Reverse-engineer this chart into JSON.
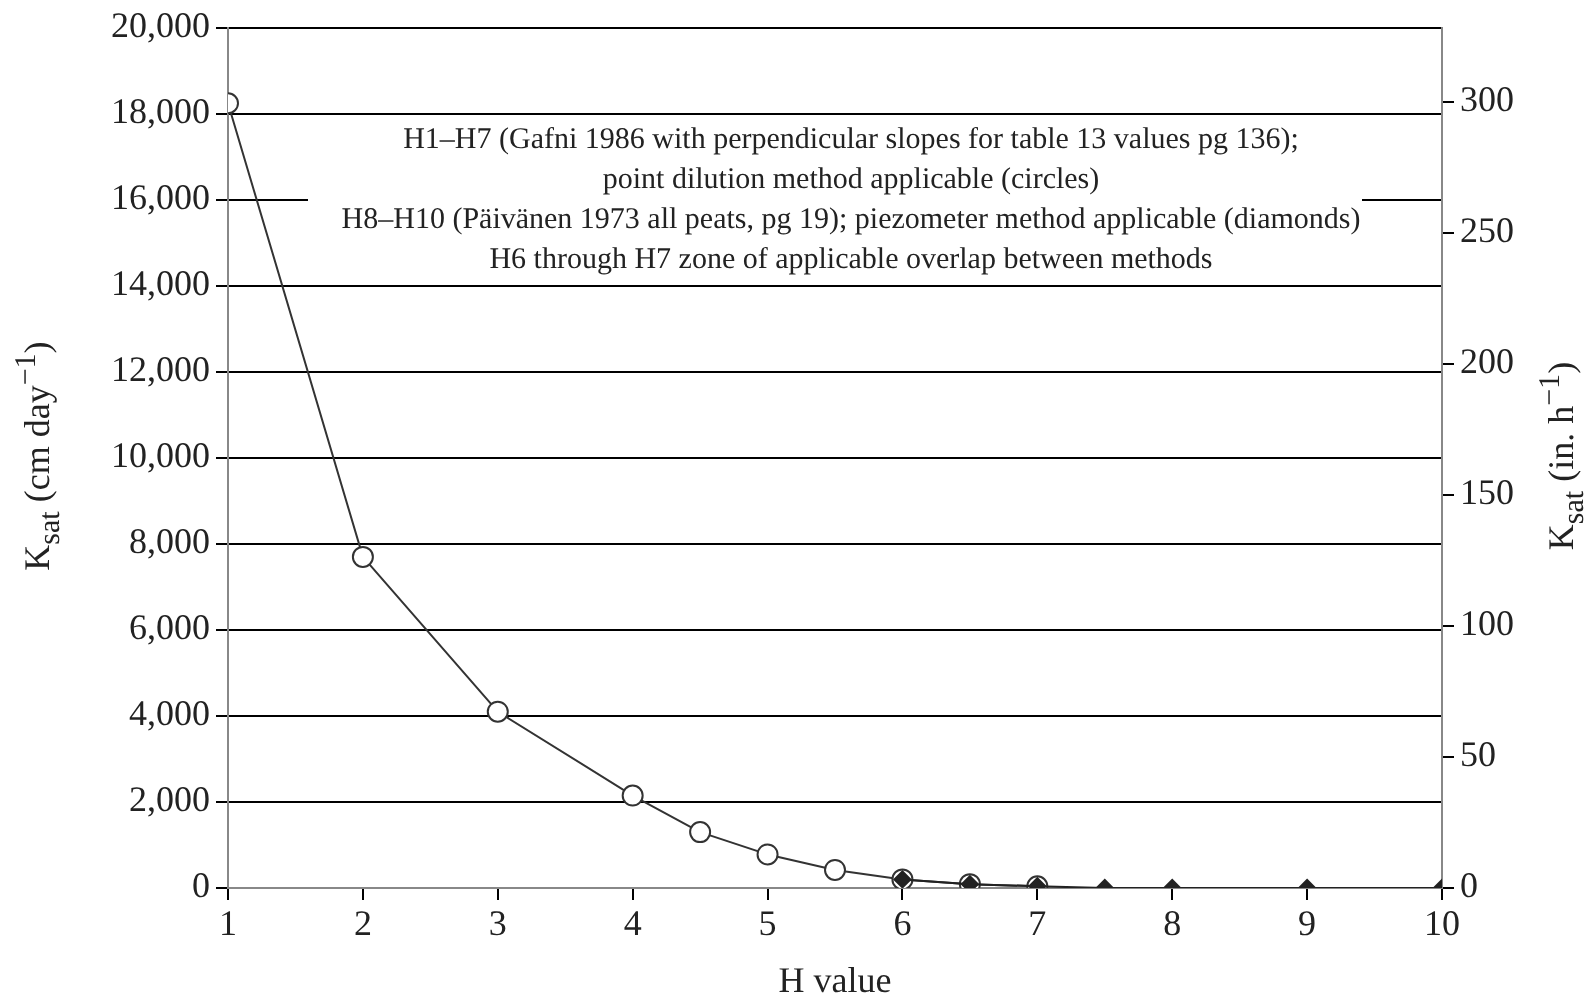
{
  "chart_data": {
    "type": "line",
    "xlabel": "H value",
    "ylabel": "K$_{sat}$ (cm day$^{−1}$)",
    "y2label": "K$_{sat}$ (in. h$^{−1}$)",
    "xlim": [
      1,
      10
    ],
    "xticks": [
      1,
      2,
      3,
      4,
      5,
      6,
      7,
      8,
      9,
      10
    ],
    "ylim": [
      0,
      20000
    ],
    "yticks": [
      {
        "value": 0,
        "label": "0"
      },
      {
        "value": 2000,
        "label": "2,000"
      },
      {
        "value": 4000,
        "label": "4,000"
      },
      {
        "value": 6000,
        "label": "6,000"
      },
      {
        "value": 8000,
        "label": "8,000"
      },
      {
        "value": 10000,
        "label": "10,000"
      },
      {
        "value": 12000,
        "label": "12,000"
      },
      {
        "value": 14000,
        "label": "14,000"
      },
      {
        "value": 16000,
        "label": "16,000"
      },
      {
        "value": 18000,
        "label": "18,000"
      },
      {
        "value": 20000,
        "label": "20,000"
      }
    ],
    "y2lim": [
      0,
      328.1
    ],
    "y2ticks": [
      0,
      50,
      100,
      150,
      200,
      250,
      300
    ],
    "grid": "y",
    "legend": false,
    "series": [
      {
        "marker": "circle",
        "color": "#333333",
        "x": [
          1,
          2,
          3,
          4,
          4.5,
          5,
          5.5,
          6,
          6.5,
          7
        ],
        "values": [
          18250,
          7700,
          4100,
          2150,
          1300,
          780,
          420,
          200,
          90,
          40
        ]
      },
      {
        "marker": "diamond",
        "color": "#222222",
        "x": [
          6,
          6.5,
          7,
          7.5,
          8,
          9,
          10
        ],
        "values": [
          200,
          90,
          40,
          0,
          0,
          0,
          0
        ]
      }
    ],
    "annotations": [
      "H1–H7 (Gafni 1986 with perpendicular slopes for table 13 values pg 136);",
      "point dilution method applicable (circles)",
      "H8–H10 (Päivänen 1973 all peats, pg 19); piezometer method applicable (diamonds)",
      "H6 through H7 zone of applicable overlap between methods"
    ]
  }
}
